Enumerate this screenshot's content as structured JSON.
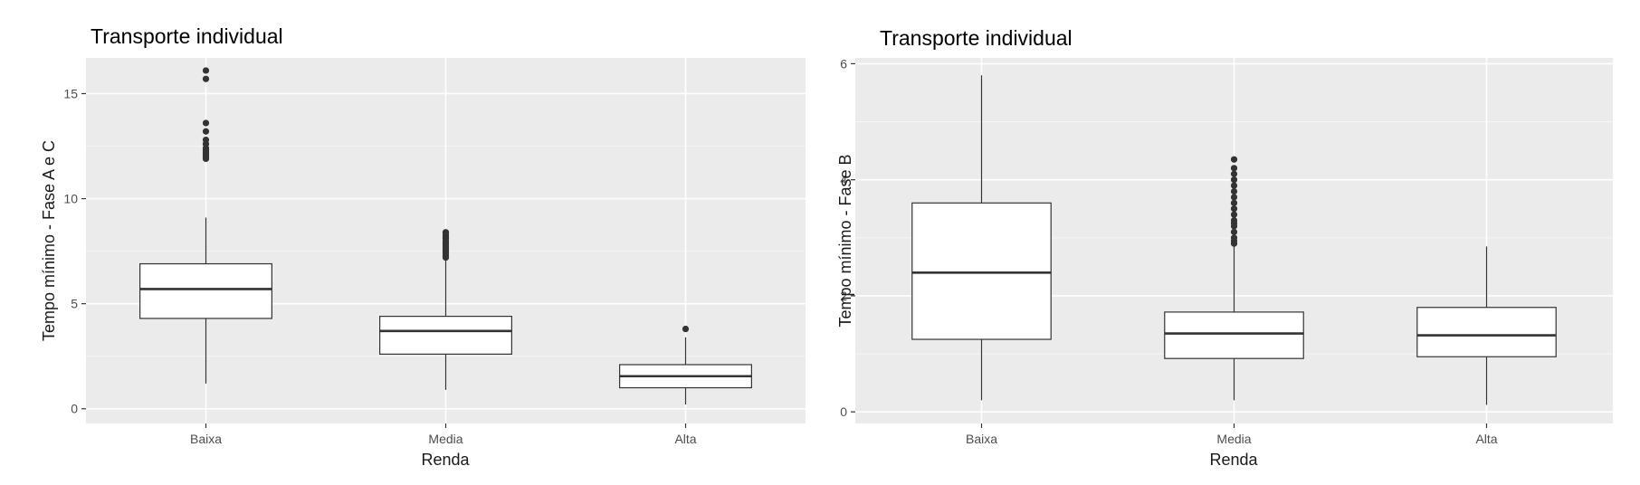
{
  "colors": {
    "panel": "#ebebeb",
    "grid_major": "#ffffff",
    "box_fill": "#ffffff",
    "box_stroke": "#333333",
    "outlier": "#333333",
    "text": "#4d4d4d"
  },
  "chart_data": [
    {
      "type": "boxplot",
      "title": "Transporte individual",
      "xlabel": "Renda",
      "ylabel": "Tempo mínimo - Fase A e C",
      "categories": [
        "Baixa",
        "Media",
        "Alta"
      ],
      "ylim": [
        -0.7,
        16.7
      ],
      "yticks": [
        0,
        5,
        10,
        15
      ],
      "grid": true,
      "boxes": [
        {
          "category": "Baixa",
          "whisker_low": 1.2,
          "q1": 4.3,
          "median": 5.7,
          "q3": 6.9,
          "whisker_high": 9.1,
          "outliers": [
            11.9,
            12.0,
            12.1,
            12.2,
            12.3,
            12.4,
            12.6,
            12.8,
            13.2,
            13.6,
            15.7,
            16.1
          ]
        },
        {
          "category": "Media",
          "whisker_low": 0.9,
          "q1": 2.6,
          "median": 3.7,
          "q3": 4.4,
          "whisker_high": 7.1,
          "outliers": [
            7.2,
            7.3,
            7.4,
            7.5,
            7.6,
            7.7,
            7.8,
            7.9,
            8.0,
            8.1,
            8.2,
            8.3,
            8.4
          ]
        },
        {
          "category": "Alta",
          "whisker_low": 0.2,
          "q1": 1.0,
          "median": 1.55,
          "q3": 2.1,
          "whisker_high": 3.4,
          "outliers": [
            3.8
          ]
        }
      ]
    },
    {
      "type": "boxplot",
      "title": "Transporte individual",
      "xlabel": "Renda",
      "ylabel": "Tempo mínimo - Fase B",
      "categories": [
        "Baixa",
        "Media",
        "Alta"
      ],
      "ylim": [
        -0.2,
        6.1
      ],
      "yticks": [
        0,
        2,
        4,
        6
      ],
      "grid": true,
      "boxes": [
        {
          "category": "Baixa",
          "whisker_low": 0.2,
          "q1": 1.25,
          "median": 2.4,
          "q3": 3.6,
          "whisker_high": 5.8,
          "outliers": []
        },
        {
          "category": "Media",
          "whisker_low": 0.2,
          "q1": 0.92,
          "median": 1.35,
          "q3": 1.72,
          "whisker_high": 2.85,
          "outliers": [
            2.9,
            2.95,
            3.0,
            3.1,
            3.2,
            3.25,
            3.3,
            3.4,
            3.5,
            3.6,
            3.7,
            3.8,
            3.9,
            4.0,
            4.1,
            4.2,
            4.35
          ]
        },
        {
          "category": "Alta",
          "whisker_low": 0.12,
          "q1": 0.95,
          "median": 1.32,
          "q3": 1.8,
          "whisker_high": 2.85,
          "outliers": []
        }
      ]
    }
  ]
}
